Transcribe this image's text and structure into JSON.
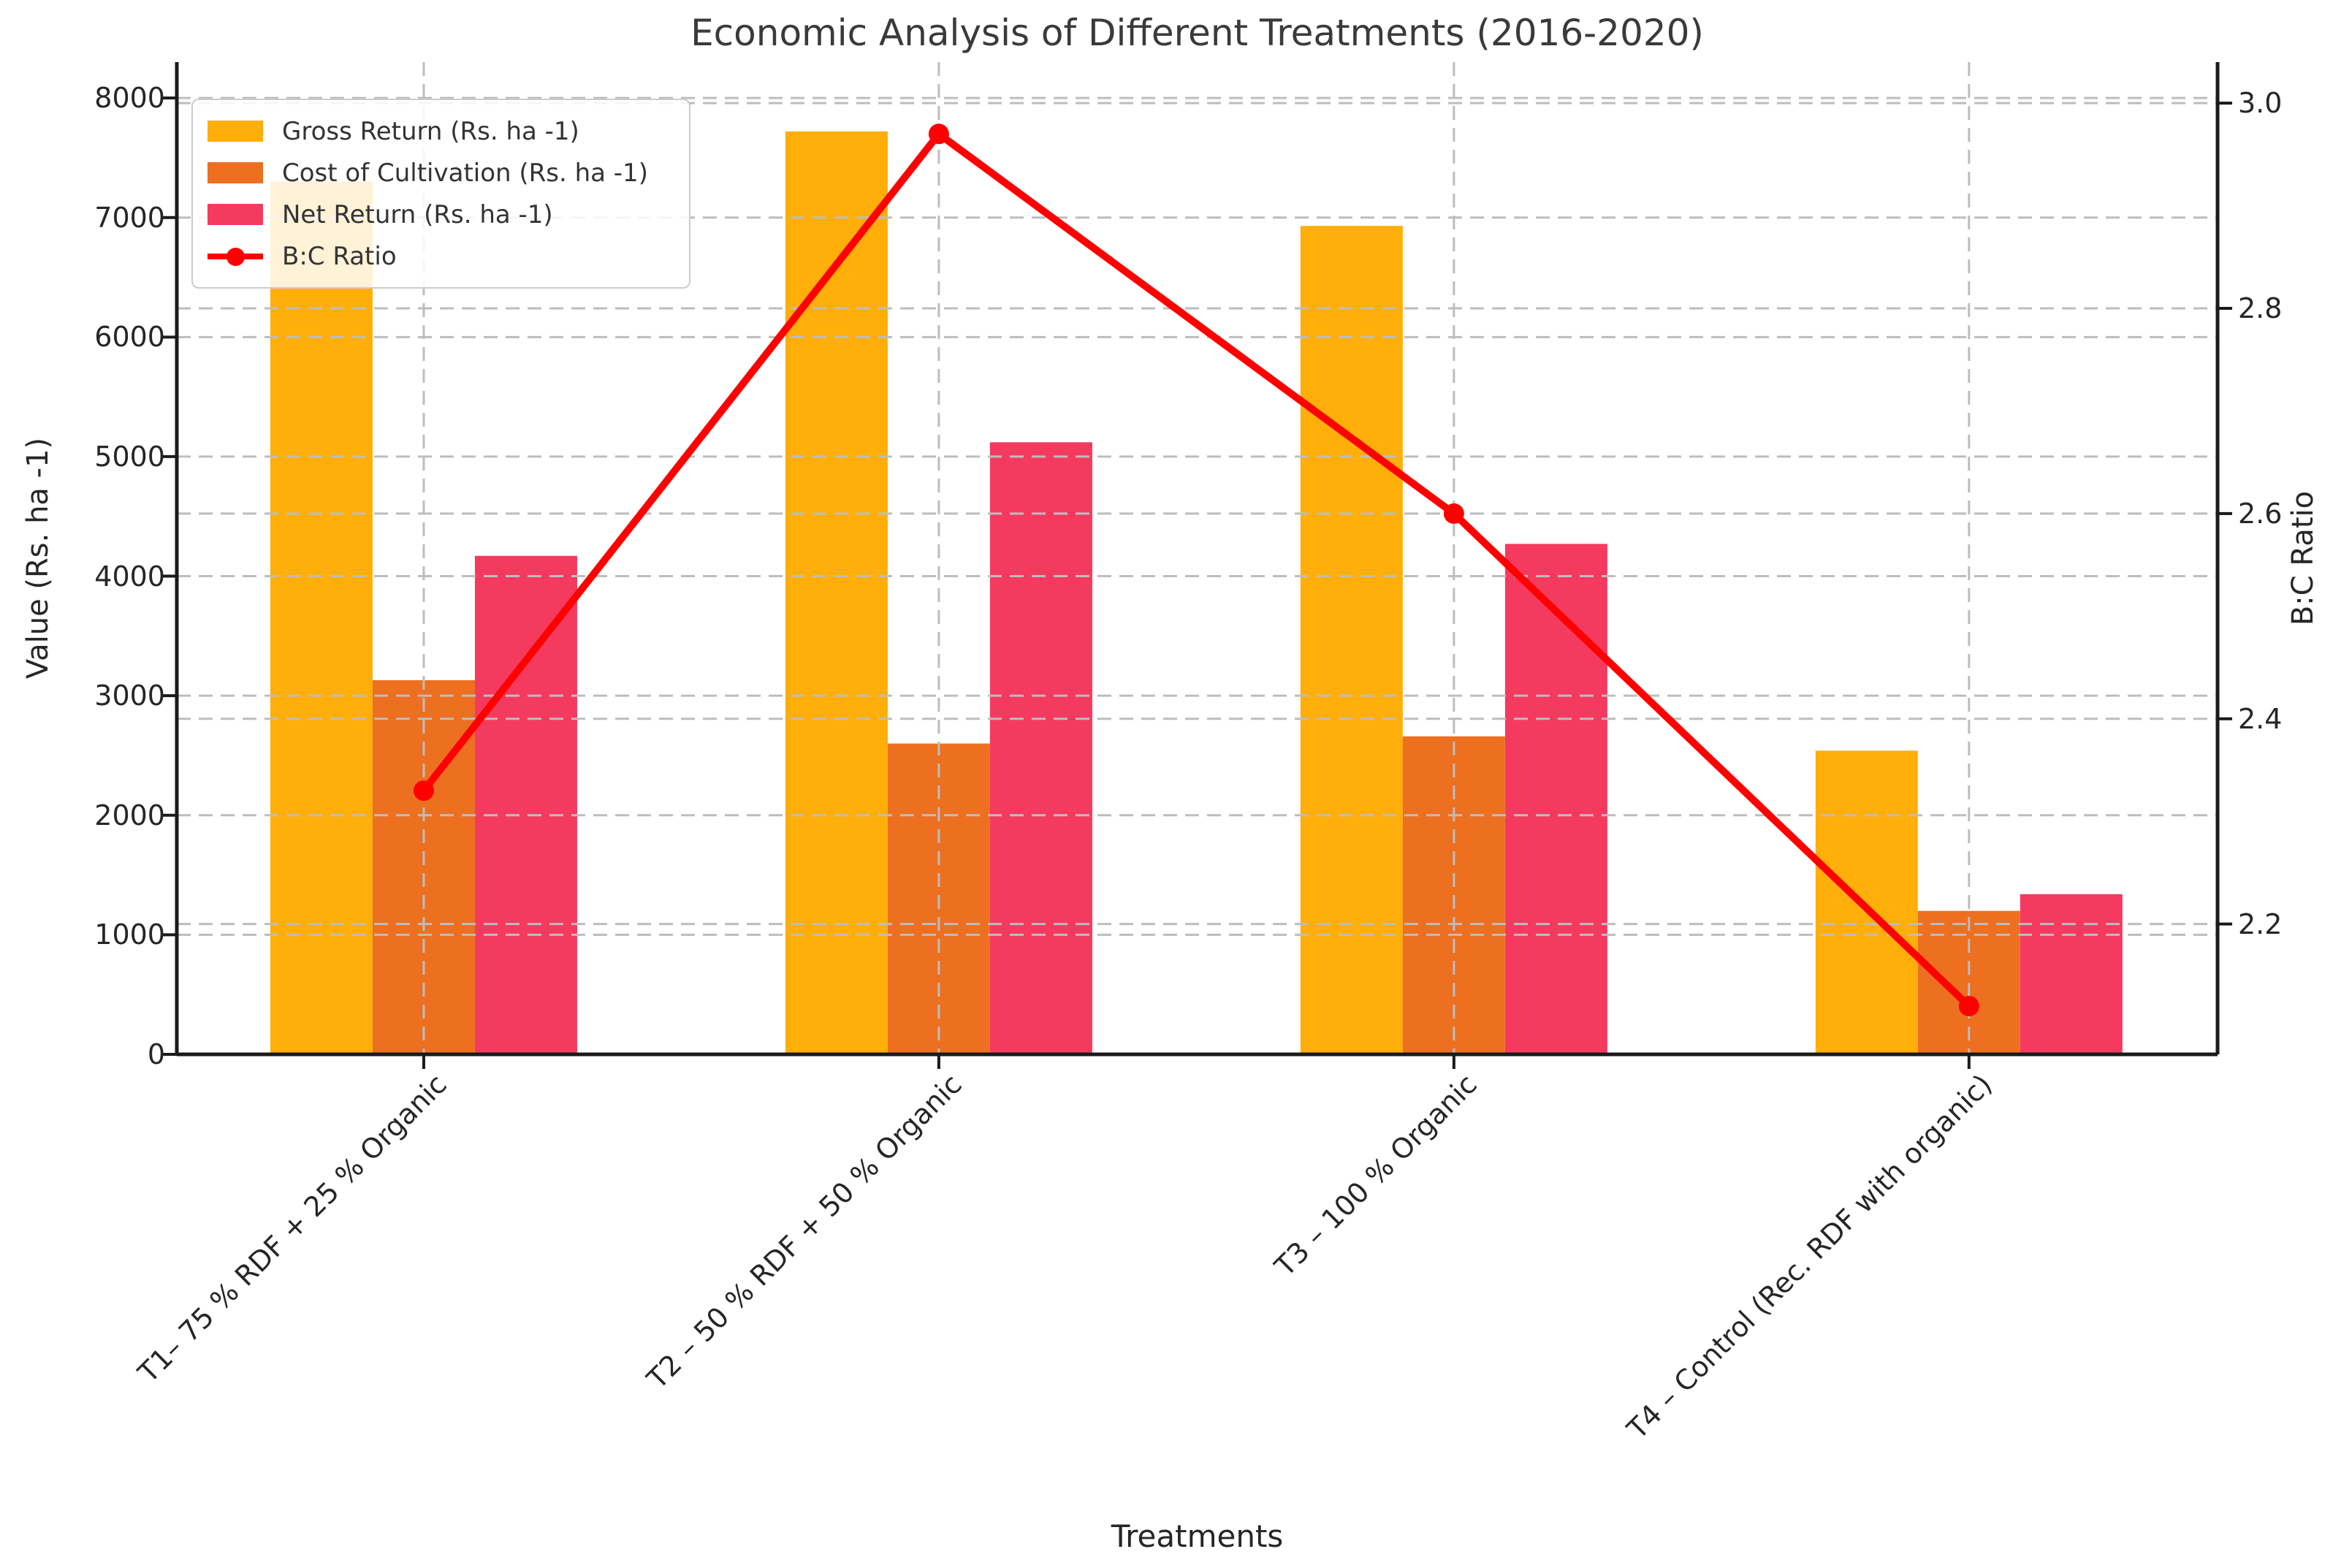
{
  "chart_data": {
    "type": "bar+line",
    "title": "Economic Analysis of Different Treatments (2016-2020)",
    "xlabel": "Treatments",
    "ylabel_left": "Value (Rs. ha -1)",
    "ylabel_right": "B:C Ratio",
    "categories": [
      "T1– 75 % RDF + 25 % Organic",
      "T2 – 50 % RDF + 50 % Organic",
      "T3 – 100 % Organic",
      "T4 – Control (Rec. RDF with organic)"
    ],
    "series": [
      {
        "name": "Gross Return (Rs. ha -1)",
        "color": "#FFAE0A",
        "values": [
          7300,
          7720,
          6930,
          2540
        ]
      },
      {
        "name": "Cost of Cultivation (Rs. ha -1)",
        "color": "#ED6F20",
        "values": [
          3130,
          2600,
          2660,
          1200
        ]
      },
      {
        "name": "Net Return (Rs. ha -1)",
        "color": "#F43A5F",
        "values": [
          4170,
          5120,
          4270,
          1340
        ]
      }
    ],
    "line_series": {
      "name": "B:C Ratio",
      "color": "#FF0000",
      "values": [
        2.33,
        2.97,
        2.6,
        2.12
      ]
    },
    "ylim_left": [
      0,
      8300
    ],
    "ylim_right": [
      2.073,
      3.04
    ],
    "yticks_left": [
      0,
      1000,
      2000,
      3000,
      4000,
      5000,
      6000,
      7000,
      8000
    ],
    "yticks_right": [
      2.2,
      2.4,
      2.6,
      2.8,
      3.0
    ],
    "grid": true,
    "legend_position": "upper left",
    "colors": {
      "grid": "#BDBDBD",
      "spine": "#1a1a1a",
      "tick_text": "#262626"
    }
  }
}
